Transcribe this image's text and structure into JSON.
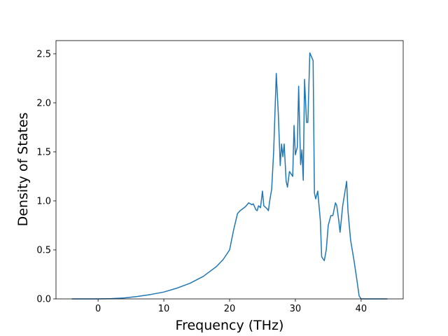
{
  "chart_data": {
    "type": "line",
    "x_label": "Frequency (THz)",
    "y_label": "Density of States",
    "x": [
      -4,
      0,
      2,
      4,
      6,
      8,
      10,
      12,
      14,
      16,
      18,
      19,
      20,
      20.6,
      21.2,
      21.6,
      22.4,
      22.9,
      23.4,
      23.6,
      24.0,
      24.2,
      24.4,
      24.7,
      25.0,
      25.2,
      25.7,
      25.9,
      26.1,
      26.4,
      26.7,
      27.1,
      27.4,
      27.7,
      27.9,
      28.1,
      28.3,
      28.6,
      28.8,
      29.1,
      29.6,
      29.8,
      30.0,
      30.3,
      30.5,
      30.8,
      31.0,
      31.2,
      31.4,
      31.7,
      31.9,
      32.2,
      32.7,
      32.9,
      33.1,
      33.4,
      33.8,
      34.0,
      34.4,
      34.7,
      35.0,
      35.4,
      35.7,
      36.1,
      36.3,
      36.6,
      36.8,
      37.2,
      37.8,
      38.0,
      38.4,
      38.9,
      39.3,
      39.7,
      40,
      44
    ],
    "series": [
      {
        "name": "DOS",
        "color": "#1f77b4",
        "values": [
          0,
          0,
          0.003,
          0.01,
          0.025,
          0.045,
          0.07,
          0.11,
          0.16,
          0.23,
          0.33,
          0.4,
          0.5,
          0.7,
          0.87,
          0.9,
          0.94,
          0.98,
          0.96,
          0.97,
          0.91,
          0.9,
          0.95,
          0.93,
          1.1,
          0.95,
          0.92,
          0.9,
          1.0,
          1.12,
          1.5,
          2.3,
          1.9,
          1.36,
          1.58,
          1.45,
          1.58,
          1.2,
          1.14,
          1.3,
          1.25,
          1.77,
          1.47,
          1.55,
          2.17,
          1.37,
          1.52,
          1.21,
          2.24,
          1.8,
          1.8,
          2.51,
          2.43,
          1.08,
          1.02,
          1.1,
          0.8,
          0.43,
          0.39,
          0.5,
          0.75,
          0.85,
          0.85,
          0.98,
          0.95,
          0.8,
          0.68,
          0.95,
          1.2,
          0.9,
          0.6,
          0.4,
          0.22,
          0.03,
          0,
          0
        ]
      }
    ],
    "xlim": [
      -6.4,
      46.4
    ],
    "xticks": [
      0,
      10,
      20,
      30,
      40
    ],
    "ylim": [
      0,
      2.635
    ],
    "yticks": [
      {
        "value": 0,
        "label": "0.0"
      },
      {
        "value": 0.5,
        "label": "0.5"
      },
      {
        "value": 1,
        "label": "1.0"
      },
      {
        "value": 1.5,
        "label": "1.5"
      },
      {
        "value": 2,
        "label": "2.0"
      },
      {
        "value": 2.5,
        "label": "2.5"
      }
    ]
  }
}
